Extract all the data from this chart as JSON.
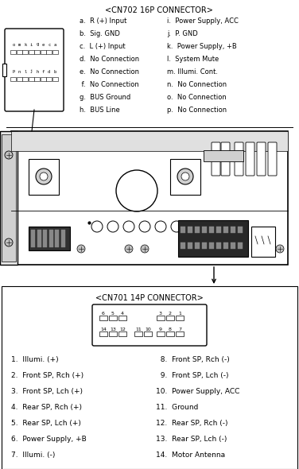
{
  "title_cn702": "<CN702 16P CONNECTOR>",
  "title_cn701": "<CN701 14P CONNECTOR>",
  "bg_color": "#ffffff",
  "text_color": "#000000",
  "cn702_left": [
    "a.  R (+) Input",
    "b.  Sig. GND",
    "c.  L (+) Input",
    "d.  No Connection",
    "e.  No Connection",
    " f.  No Connection",
    "g.  BUS Ground",
    "h.  BUS Line"
  ],
  "cn702_right": [
    "i.  Power Supply, ACC",
    "j.  P. GND",
    "k.  Power Supply, +B",
    "l.  System Mute",
    "m. Illumi. Cont.",
    "n.  No Connection",
    "o.  No Connection",
    "p.  No Connection"
  ],
  "cn702_top_labels": [
    "o",
    "m",
    "k",
    "i",
    "g",
    "e",
    "c",
    "a"
  ],
  "cn702_bot_labels": [
    "p",
    "n",
    "l",
    "j",
    "h",
    "f",
    "d",
    "b"
  ],
  "cn701_left": [
    "1.  Illumi. (+)",
    "2.  Front SP, Rch (+)",
    "3.  Front SP, Lch (+)",
    "4.  Rear SP, Rch (+)",
    "5.  Rear SP, Lch (+)",
    "6.  Power Supply, +B",
    "7.  Illumi. (-)"
  ],
  "cn701_right": [
    "  8.  Front SP, Rch (-)",
    "  9.  Front SP, Lch (-)",
    "10.  Power Supply, ACC",
    "11.  Ground",
    "12.  Rear SP, Rch (-)",
    "13.  Rear SP, Lch (-)",
    "14.  Motor Antenna"
  ]
}
